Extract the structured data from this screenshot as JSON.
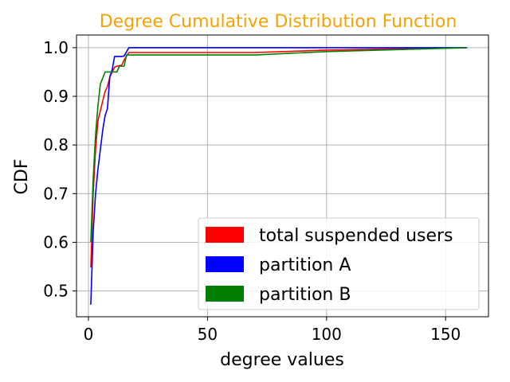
{
  "chart_data": {
    "type": "line",
    "title": "Degree Cumulative Distribution Function",
    "title_color": "#f5a300",
    "xlabel": "degree values",
    "ylabel": "CDF",
    "xlim": [
      -5,
      168
    ],
    "ylim": [
      0.447,
      1.026
    ],
    "x_ticks": [
      0,
      50,
      100,
      150
    ],
    "x_tick_labels": [
      "0",
      "50",
      "100",
      "150"
    ],
    "y_ticks": [
      0.5,
      0.6,
      0.7,
      0.8,
      0.9,
      1.0
    ],
    "y_tick_labels": [
      "0.5",
      "0.6",
      "0.7",
      "0.8",
      "0.9",
      "1.0"
    ],
    "grid": true,
    "legend_position": "bottom-right",
    "series": [
      {
        "name": "total suspended users",
        "color": "#ff0000",
        "points": [
          [
            1,
            0.548
          ],
          [
            2,
            0.7
          ],
          [
            3,
            0.79
          ],
          [
            4,
            0.85
          ],
          [
            5,
            0.87
          ],
          [
            6,
            0.89
          ],
          [
            7,
            0.91
          ],
          [
            8,
            0.92
          ],
          [
            9,
            0.94
          ],
          [
            10,
            0.95
          ],
          [
            11,
            0.96
          ],
          [
            12,
            0.962
          ],
          [
            13,
            0.963
          ],
          [
            14,
            0.964
          ],
          [
            15,
            0.975
          ],
          [
            17,
            0.99
          ],
          [
            70,
            0.99
          ],
          [
            100,
            0.995
          ],
          [
            159,
            1.0
          ]
        ]
      },
      {
        "name": "partition A",
        "color": "#0000ff",
        "points": [
          [
            1,
            0.472
          ],
          [
            2,
            0.62
          ],
          [
            3,
            0.7
          ],
          [
            4,
            0.75
          ],
          [
            5,
            0.79
          ],
          [
            6,
            0.83
          ],
          [
            7,
            0.86
          ],
          [
            8,
            0.875
          ],
          [
            9,
            0.94
          ],
          [
            10,
            0.955
          ],
          [
            11,
            0.982
          ],
          [
            14,
            0.982
          ],
          [
            15,
            0.983
          ],
          [
            17,
            1.0
          ],
          [
            159,
            1.0
          ]
        ]
      },
      {
        "name": "partition B",
        "color": "#008000",
        "points": [
          [
            1,
            0.6
          ],
          [
            2,
            0.73
          ],
          [
            3,
            0.82
          ],
          [
            4,
            0.88
          ],
          [
            5,
            0.925
          ],
          [
            7,
            0.95
          ],
          [
            12,
            0.95
          ],
          [
            13,
            0.962
          ],
          [
            15,
            0.962
          ],
          [
            16,
            0.985
          ],
          [
            70,
            0.985
          ],
          [
            100,
            0.992
          ],
          [
            159,
            1.0
          ]
        ]
      }
    ]
  }
}
